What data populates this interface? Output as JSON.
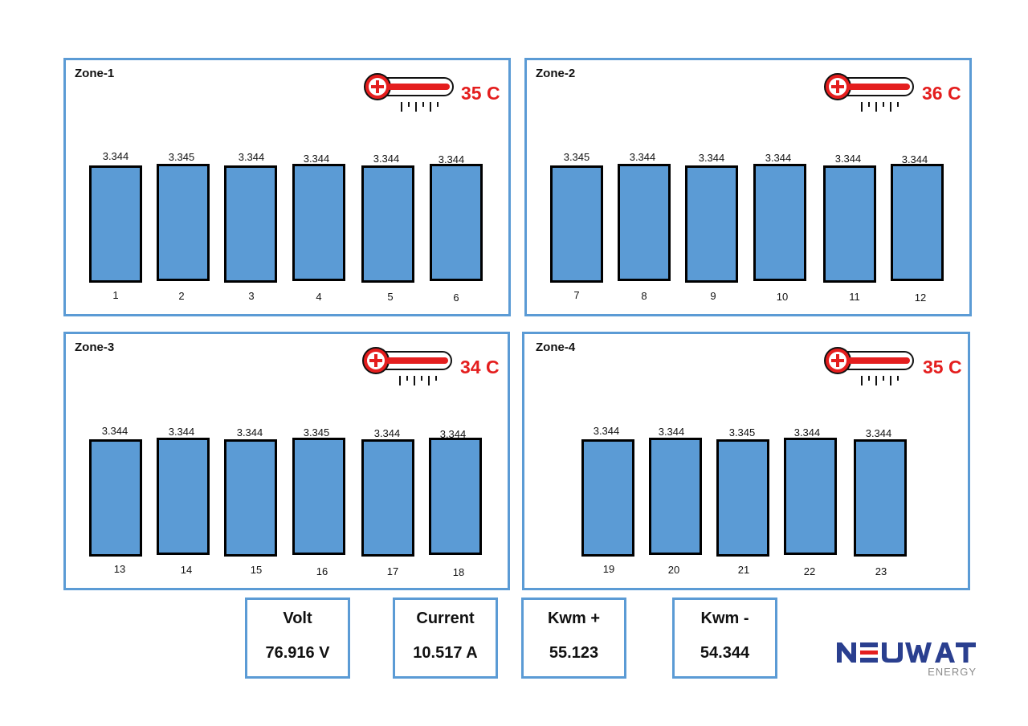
{
  "zones": [
    {
      "title": "Zone-1",
      "temp": "35 C",
      "cells": [
        {
          "v": "3.344",
          "n": "1"
        },
        {
          "v": "3.345",
          "n": "2"
        },
        {
          "v": "3.344",
          "n": "3"
        },
        {
          "v": "3.344",
          "n": "4"
        },
        {
          "v": "3.344",
          "n": "5"
        },
        {
          "v": "3.344",
          "n": "6"
        }
      ]
    },
    {
      "title": "Zone-2",
      "temp": "36 C",
      "cells": [
        {
          "v": "3.345",
          "n": "7"
        },
        {
          "v": "3.344",
          "n": "8"
        },
        {
          "v": "3.344",
          "n": "9"
        },
        {
          "v": "3.344",
          "n": "10"
        },
        {
          "v": "3.344",
          "n": "11"
        },
        {
          "v": "3.344",
          "n": "12"
        }
      ]
    },
    {
      "title": "Zone-3",
      "temp": "34 C",
      "cells": [
        {
          "v": "3.344",
          "n": "13"
        },
        {
          "v": "3.344",
          "n": "14"
        },
        {
          "v": "3.344",
          "n": "15"
        },
        {
          "v": "3.345",
          "n": "16"
        },
        {
          "v": "3.344",
          "n": "17"
        },
        {
          "v": "3.344",
          "n": "18"
        }
      ]
    },
    {
      "title": "Zone-4",
      "temp": "35 C",
      "cells": [
        {
          "v": "3.344",
          "n": "19"
        },
        {
          "v": "3.344",
          "n": "20"
        },
        {
          "v": "3.345",
          "n": "21"
        },
        {
          "v": "3.344",
          "n": "22"
        },
        {
          "v": "3.344",
          "n": "23"
        }
      ]
    }
  ],
  "metrics": [
    {
      "label": "Volt",
      "value": "76.916 V"
    },
    {
      "label": "Current",
      "value": "10.517 A"
    },
    {
      "label": "Kwm +",
      "value": "55.123"
    },
    {
      "label": "Kwm -",
      "value": "54.344"
    }
  ],
  "logo": {
    "name": "NEUWAT",
    "sub": "ENERGY"
  },
  "colors": {
    "cell_fill": "#5b9bd5",
    "zone_border": "#5b9bd5",
    "temp_text": "#e41e1e",
    "logo_blue": "#2a3f8f",
    "logo_red": "#e41e1e"
  },
  "icons": {
    "thermometer": "thermometer-icon",
    "logo": "neuwat-logo"
  }
}
